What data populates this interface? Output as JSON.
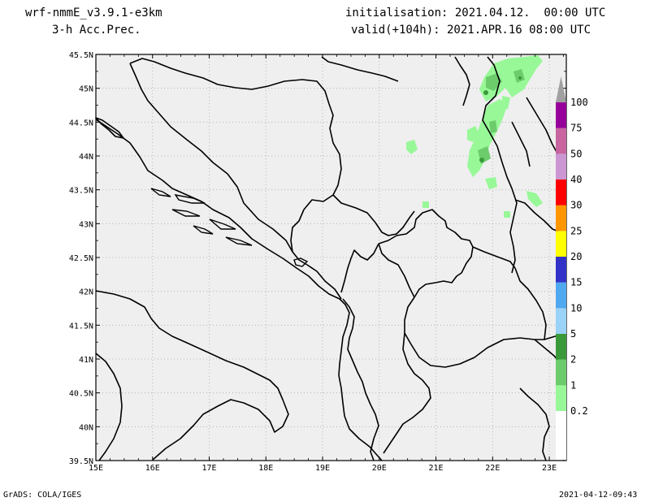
{
  "header": {
    "model": "wrf-nmmE_v3.9.1-e3km",
    "field": "3-h Acc.Prec.",
    "init": "initialisation: 2021.04.12.  00:00 UTC",
    "valid": "valid(+104h): 2021.APR.16 08:00 UTC"
  },
  "footer": {
    "left": "GrADS: COLA/IGES",
    "right": "2021-04-12-09:43"
  },
  "map": {
    "lon_labels": [
      "15E",
      "16E",
      "17E",
      "18E",
      "19E",
      "20E",
      "21E",
      "22E",
      "23E"
    ],
    "lat_labels": [
      "45.5N",
      "45N",
      "44.5N",
      "44N",
      "43.5N",
      "43N",
      "42.5N",
      "42N",
      "41.5N",
      "41N",
      "40.5N",
      "40N",
      "39.5N"
    ],
    "lon_range": [
      15,
      23.3
    ],
    "lat_range": [
      39.5,
      45.5
    ],
    "colors": {
      "land": "#efefef",
      "grid": "#aaaaaa",
      "border": "#000000"
    }
  },
  "colorbar": {
    "levels": [
      "0.2",
      "1",
      "2",
      "5",
      "10",
      "15",
      "20",
      "25",
      "30",
      "40",
      "50",
      "75",
      "100"
    ],
    "colors": [
      "#98f898",
      "#6ccc6c",
      "#3a9a3a",
      "#9ad2f8",
      "#50a8f0",
      "#3232c8",
      "#ffff00",
      "#ff9600",
      "#ff0000",
      "#cc96d2",
      "#c864a0",
      "#96009a",
      "#a0a0a0"
    ]
  }
}
